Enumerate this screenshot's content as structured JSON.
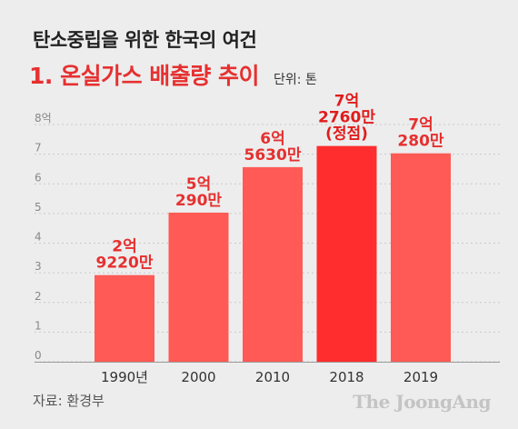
{
  "header": {
    "title": "탄소중립을 위한 한국의 여건",
    "subtitle": "1. 온실가스 배출량 추이",
    "unit": "단위: 톤"
  },
  "footer": {
    "source": "자료: 환경부",
    "logo": "The JoongAng"
  },
  "colors": {
    "bar": "#ff5a55",
    "bar_highlight": "#ff2d2d",
    "label": "#e63030",
    "label_highlight": "#e01c1c"
  },
  "chart_data": {
    "type": "bar",
    "categories": [
      "1990년",
      "2000",
      "2010",
      "2018",
      "2019"
    ],
    "values": [
      2.922,
      5.029,
      6.563,
      7.276,
      7.028
    ],
    "data_labels": [
      [
        "2억",
        "9220만"
      ],
      [
        "5억",
        "290만"
      ],
      [
        "6억",
        "5630만"
      ],
      [
        "7억",
        "2760만",
        "(정점)"
      ],
      [
        "7억",
        "280만"
      ]
    ],
    "highlight_index": 3,
    "yticks": [
      "0",
      "1",
      "2",
      "3",
      "4",
      "5",
      "6",
      "7",
      "8억"
    ],
    "ylim": [
      0,
      8
    ],
    "grid": true
  }
}
